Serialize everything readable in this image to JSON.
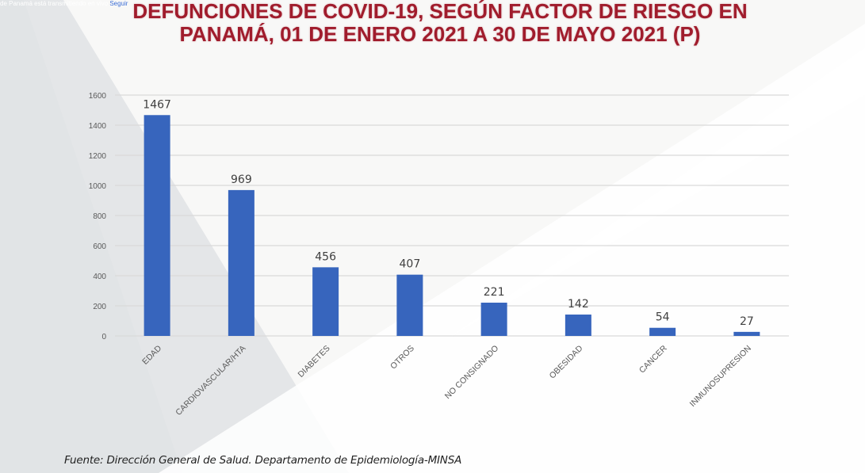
{
  "overlay": {
    "text": "de Panamá está transmitiendo en vivo",
    "link": "Seguir"
  },
  "colors": {
    "title": "#a01c2c",
    "bar": "#3765bd",
    "grid": "#d9d9d9",
    "tick_text": "#595959",
    "label_text": "#404040"
  },
  "chart_data": {
    "type": "bar",
    "title": "DEFUNCIONES DE COVID-19, SEGÚN FACTOR DE RIESGO EN PANAMÁ, 01 DE ENERO 2021 A 30  DE MAYO 2021 (P)",
    "title_lines": [
      "DEFUNCIONES DE COVID-19, SEGÚN FACTOR DE RIESGO EN",
      "PANAMÁ, 01 DE ENERO 2021 A 30  DE MAYO 2021 (P)"
    ],
    "categories": [
      "EDAD",
      "CARDIOVASCULAR/HTA",
      "DIABETES",
      "OTROS",
      "NO CONSIGNADO",
      "OBESIDAD",
      "CANCER",
      "INMUNOSUPRESION"
    ],
    "values": [
      1467,
      969,
      456,
      407,
      221,
      142,
      54,
      27
    ],
    "data_labels": [
      "1467",
      "969",
      "456",
      "407",
      "221",
      "142",
      "54",
      "27"
    ],
    "xlabel": "",
    "ylabel": "",
    "ylim": [
      0,
      1600
    ],
    "yticks": [
      0,
      200,
      400,
      600,
      800,
      1000,
      1200,
      1400,
      1600
    ],
    "grid": true,
    "legend": "none"
  },
  "source": "Fuente: Dirección General de Salud. Departamento de Epidemiología-MINSA"
}
